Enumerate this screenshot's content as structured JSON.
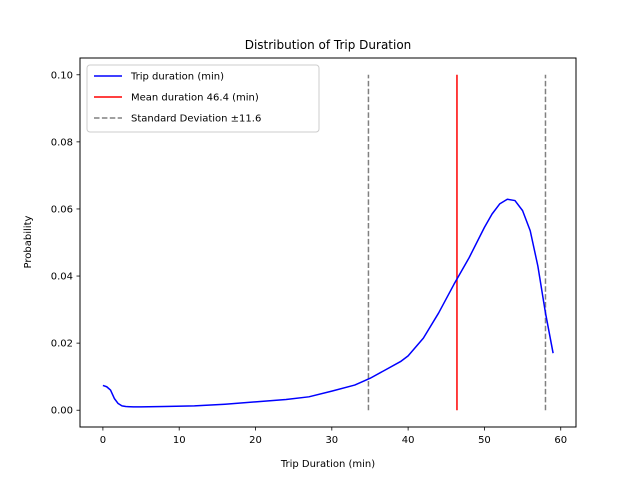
{
  "chart_data": {
    "type": "line",
    "title": "Distribution of Trip Duration",
    "xlabel": "Trip Duration (min)",
    "ylabel": "Probability",
    "xlim": [
      -3,
      62
    ],
    "ylim": [
      -0.005,
      0.105
    ],
    "xticks": [
      0,
      10,
      20,
      30,
      40,
      50,
      60
    ],
    "yticks": [
      0.0,
      0.02,
      0.04,
      0.06,
      0.08,
      0.1
    ],
    "ytick_labels": [
      "0.00",
      "0.02",
      "0.04",
      "0.06",
      "0.08",
      "0.10"
    ],
    "grid": false,
    "legend_position": "top-left",
    "series": [
      {
        "name": "Trip duration (min)",
        "color": "#0000ff",
        "style": "solid",
        "x": [
          0,
          0.5,
          1,
          1.5,
          2,
          2.5,
          3,
          4,
          5,
          8,
          12,
          16,
          20,
          24,
          27,
          30,
          33,
          35,
          37,
          39,
          40,
          42,
          44,
          46,
          48,
          50,
          51,
          52,
          53,
          54,
          55,
          56,
          57,
          58,
          59
        ],
        "y": [
          0.0074,
          0.007,
          0.006,
          0.0035,
          0.002,
          0.0013,
          0.0011,
          0.001,
          0.001,
          0.0011,
          0.0013,
          0.0018,
          0.0025,
          0.0032,
          0.004,
          0.0057,
          0.0075,
          0.0095,
          0.012,
          0.0145,
          0.0162,
          0.0215,
          0.029,
          0.0375,
          0.0455,
          0.0545,
          0.0585,
          0.0615,
          0.0629,
          0.0625,
          0.0595,
          0.0535,
          0.043,
          0.029,
          0.017
        ]
      }
    ],
    "vlines": [
      {
        "name": "Mean duration 46.4 (min)",
        "x": 46.4,
        "ymin": 0,
        "ymax": 0.1,
        "color": "#ff0000",
        "style": "solid"
      },
      {
        "name": "Standard Deviation ±11.6",
        "x": 34.8,
        "ymin": 0,
        "ymax": 0.1,
        "color": "#808080",
        "style": "dashed"
      },
      {
        "name": "",
        "x": 58.0,
        "ymin": 0,
        "ymax": 0.1,
        "color": "#808080",
        "style": "dashed"
      }
    ],
    "legend": [
      {
        "label": "Trip duration (min)",
        "color": "#0000ff",
        "style": "solid"
      },
      {
        "label": "Mean duration 46.4 (min)",
        "color": "#ff0000",
        "style": "solid"
      },
      {
        "label": "Standard Deviation ±11.6",
        "color": "#808080",
        "style": "dashed"
      }
    ]
  }
}
